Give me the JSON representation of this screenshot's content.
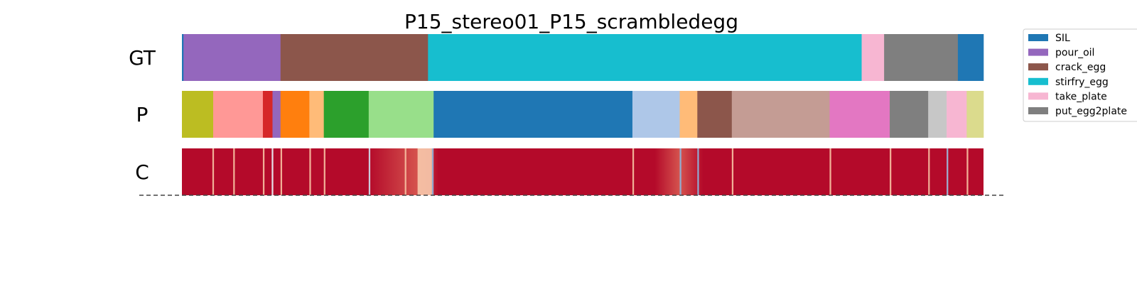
{
  "chart_data": {
    "type": "segmentation",
    "title": "P15_stereo01_P15_scrambledegg",
    "x_range": [
      0,
      1000
    ],
    "rows": [
      {
        "label": "GT",
        "segments": [
          {
            "start": 0,
            "end": 2,
            "label": "SIL",
            "color": "#1f77b4"
          },
          {
            "start": 2,
            "end": 123,
            "label": "pour_oil",
            "color": "#9467bd"
          },
          {
            "start": 123,
            "end": 307,
            "label": "crack_egg",
            "color": "#8c564b"
          },
          {
            "start": 307,
            "end": 848,
            "label": "stirfry_egg",
            "color": "#17becf"
          },
          {
            "start": 848,
            "end": 876,
            "label": "take_plate",
            "color": "#f7b6d2"
          },
          {
            "start": 876,
            "end": 968,
            "label": "put_egg2plate",
            "color": "#7f7f7f"
          },
          {
            "start": 968,
            "end": 1000,
            "label": "SIL",
            "color": "#1f77b4"
          }
        ]
      },
      {
        "label": "P",
        "segments": [
          {
            "start": 0,
            "end": 39,
            "color": "#bcbd22"
          },
          {
            "start": 39,
            "end": 101,
            "color": "#ff9896"
          },
          {
            "start": 101,
            "end": 113,
            "color": "#d62728"
          },
          {
            "start": 113,
            "end": 123,
            "color": "#9467bd"
          },
          {
            "start": 123,
            "end": 159,
            "color": "#ff7f0e"
          },
          {
            "start": 159,
            "end": 177,
            "color": "#ffbb78"
          },
          {
            "start": 177,
            "end": 233,
            "color": "#2ca02c"
          },
          {
            "start": 233,
            "end": 314,
            "color": "#98df8a"
          },
          {
            "start": 314,
            "end": 562,
            "color": "#1f77b4"
          },
          {
            "start": 562,
            "end": 621,
            "color": "#aec7e8"
          },
          {
            "start": 621,
            "end": 643,
            "color": "#ffbb78"
          },
          {
            "start": 643,
            "end": 686,
            "color": "#8c564b"
          },
          {
            "start": 686,
            "end": 808,
            "color": "#c49c94"
          },
          {
            "start": 808,
            "end": 883,
            "color": "#e377c2"
          },
          {
            "start": 883,
            "end": 931,
            "color": "#7f7f7f"
          },
          {
            "start": 931,
            "end": 954,
            "color": "#c7c7c7"
          },
          {
            "start": 954,
            "end": 979,
            "color": "#f7b6d2"
          },
          {
            "start": 979,
            "end": 1000,
            "color": "#dbdb8d"
          }
        ]
      },
      {
        "label": "C",
        "base_color": "#b40a2a",
        "stripes": [
          {
            "pos": 38,
            "width": 2,
            "color": "#f4b89c"
          },
          {
            "pos": 64,
            "width": 2,
            "color": "#f4b89c"
          },
          {
            "pos": 101,
            "width": 2,
            "color": "#f4b89c"
          },
          {
            "pos": 112,
            "width": 2,
            "color": "#e8eaf0"
          },
          {
            "pos": 123,
            "width": 2,
            "color": "#f4b89c"
          },
          {
            "pos": 159,
            "width": 2,
            "color": "#f4b89c"
          },
          {
            "pos": 177,
            "width": 2,
            "color": "#f4b89c"
          },
          {
            "pos": 233,
            "width": 2,
            "color": "#cdd5e6"
          },
          {
            "pos": 278,
            "width": 2,
            "color": "#f4b89c"
          },
          {
            "pos": 294,
            "width": 18,
            "color": "#f6c3a8"
          },
          {
            "pos": 312,
            "width": 2,
            "color": "#8fb0d6"
          },
          {
            "pos": 562,
            "width": 2,
            "color": "#f4b89c"
          },
          {
            "pos": 621,
            "width": 2,
            "color": "#8fb0d6"
          },
          {
            "pos": 643,
            "width": 2,
            "color": "#8fb0d6"
          },
          {
            "pos": 686,
            "width": 2,
            "color": "#f4b89c"
          },
          {
            "pos": 808,
            "width": 2,
            "color": "#f4b89c"
          },
          {
            "pos": 883,
            "width": 2,
            "color": "#f4b89c"
          },
          {
            "pos": 931,
            "width": 2,
            "color": "#f4b89c"
          },
          {
            "pos": 954,
            "width": 2,
            "color": "#9eb6d8"
          },
          {
            "pos": 979,
            "width": 2,
            "color": "#f4b89c"
          }
        ],
        "fades": [
          {
            "start": 233,
            "end": 320,
            "color": "#e06c5a",
            "peak": 294
          },
          {
            "start": 590,
            "end": 650,
            "color": "#e06c5a",
            "peak": 621
          }
        ]
      }
    ],
    "legend": {
      "position": "upper right",
      "entries": [
        {
          "label": "SIL",
          "color": "#1f77b4"
        },
        {
          "label": "pour_oil",
          "color": "#9467bd"
        },
        {
          "label": "crack_egg",
          "color": "#8c564b"
        },
        {
          "label": "stirfry_egg",
          "color": "#17becf"
        },
        {
          "label": "take_plate",
          "color": "#f7b6d2"
        },
        {
          "label": "put_egg2plate",
          "color": "#7f7f7f"
        }
      ]
    }
  }
}
